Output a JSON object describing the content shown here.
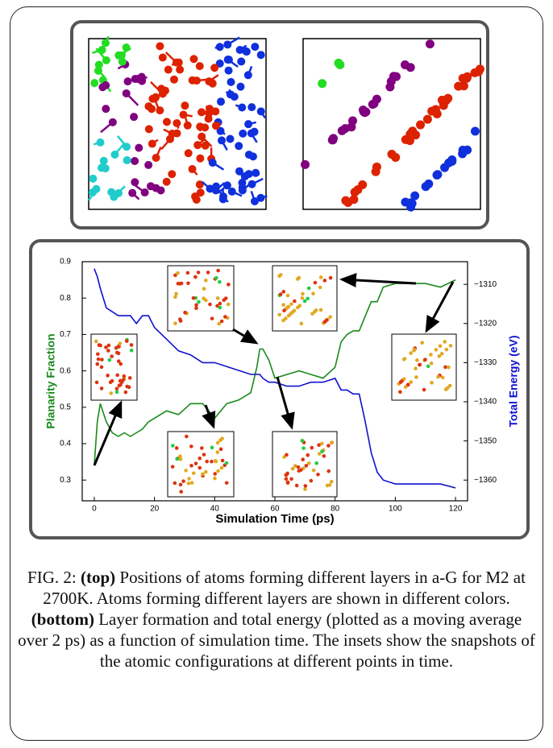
{
  "chart_data": {
    "type": "line",
    "xlabel": "Simulation Time (ps)",
    "ylabel": "Planarity Fraction",
    "y2label": "Total Energy (eV)",
    "x": [
      0,
      1,
      2,
      4,
      6,
      8,
      10,
      12,
      14,
      16,
      18,
      20,
      24,
      28,
      32,
      36,
      40,
      44,
      48,
      52,
      54,
      55,
      56,
      58,
      60,
      64,
      68,
      72,
      76,
      80,
      82,
      84,
      86,
      88,
      90,
      92,
      94,
      96,
      100,
      105,
      110,
      115,
      120
    ],
    "series": [
      {
        "name": "Planarity Fraction",
        "color": "#1a8a1a",
        "axis": "y",
        "values": [
          0.34,
          0.46,
          0.51,
          0.46,
          0.43,
          0.42,
          0.43,
          0.42,
          0.43,
          0.44,
          0.46,
          0.47,
          0.49,
          0.48,
          0.51,
          0.51,
          0.47,
          0.51,
          0.52,
          0.54,
          0.61,
          0.66,
          0.66,
          0.63,
          0.58,
          0.59,
          0.6,
          0.59,
          0.58,
          0.61,
          0.68,
          0.7,
          0.71,
          0.71,
          0.75,
          0.79,
          0.79,
          0.83,
          0.84,
          0.84,
          0.84,
          0.83,
          0.85
        ]
      },
      {
        "name": "Total Energy (eV)",
        "color": "#1010d0",
        "axis": "y2",
        "values": [
          -1306,
          -1308,
          -1311,
          -1316,
          -1317,
          -1318,
          -1318,
          -1318,
          -1320,
          -1318,
          -1318,
          -1321,
          -1324,
          -1327,
          -1328,
          -1330,
          -1330,
          -1331,
          -1332,
          -1333,
          -1333,
          -1333,
          -1334,
          -1335,
          -1335,
          -1336,
          -1336,
          -1335,
          -1335,
          -1334,
          -1337,
          -1337,
          -1338,
          -1338,
          -1345,
          -1353,
          -1358,
          -1360,
          -1361,
          -1361,
          -1361,
          -1361,
          -1362
        ]
      }
    ],
    "xlim": [
      -4,
      124
    ],
    "xticks": [
      0,
      20,
      40,
      60,
      80,
      100,
      120
    ],
    "ylim": [
      0.243,
      0.9
    ],
    "yticks": [
      0.3,
      0.4,
      0.5,
      0.6,
      0.7,
      0.8,
      0.9
    ],
    "y2lim": [
      -1365.3,
      -1304.2
    ],
    "y2ticks": [
      {
        "value": -1310,
        "label": "−1310"
      },
      {
        "value": -1320,
        "label": "−1320"
      },
      {
        "value": -1330,
        "label": "−1330"
      },
      {
        "value": -1340,
        "label": "−1340"
      },
      {
        "value": -1350,
        "label": "−1350"
      },
      {
        "value": -1360,
        "label": "−1360"
      }
    ]
  },
  "caption": {
    "label": "FIG. 2:",
    "top_tag": "(top)",
    "top_text": "Positions of atoms forming different layers in a-G for M2 at 2700K. Atoms forming different layers are shown in different colors.",
    "bottom_tag": "(bottom)",
    "bottom_text": "Layer formation and total energy (plotted as a moving average over 2 ps) as a function of simulation time. The insets show the snapshots of the atomic configurations at different points in time."
  }
}
